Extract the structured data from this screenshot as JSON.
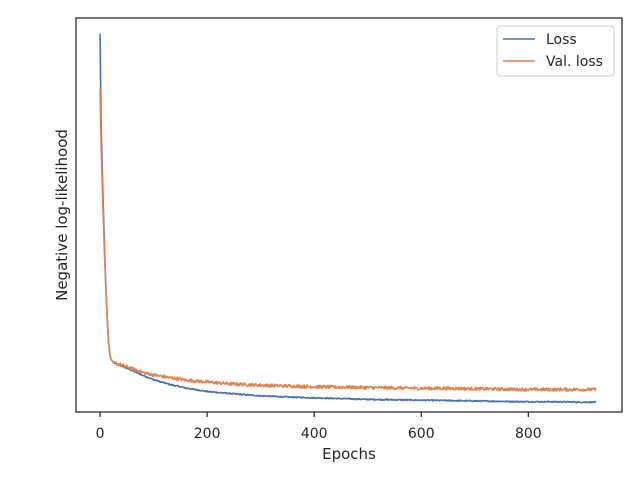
{
  "chart_data": {
    "type": "line",
    "title": "",
    "xlabel": "Epochs",
    "ylabel": "Negative log-likelihood",
    "xlim": [
      -45,
      975
    ],
    "ylim": [
      0,
      1
    ],
    "xticks": [
      0,
      200,
      400,
      600,
      800
    ],
    "x_tick_labels": [
      "0",
      "200",
      "400",
      "600",
      "800"
    ],
    "y_tick_labels_visible": false,
    "grid": false,
    "legend_position": "top-right",
    "series": [
      {
        "name": "Loss",
        "color": "#4c72b0",
        "x": [
          0,
          1,
          2,
          4,
          6,
          8,
          10,
          12,
          14,
          16,
          18,
          20,
          25,
          30,
          40,
          60,
          80,
          100,
          130,
          160,
          200,
          250,
          300,
          350,
          400,
          450,
          500,
          550,
          600,
          650,
          700,
          750,
          800,
          850,
          900,
          927
        ],
        "y": [
          0.96,
          0.83,
          0.73,
          0.62,
          0.52,
          0.43,
          0.35,
          0.28,
          0.22,
          0.175,
          0.15,
          0.135,
          0.125,
          0.122,
          0.117,
          0.105,
          0.093,
          0.082,
          0.07,
          0.061,
          0.052,
          0.046,
          0.041,
          0.038,
          0.036,
          0.034,
          0.032,
          0.031,
          0.03,
          0.029,
          0.028,
          0.027,
          0.026,
          0.026,
          0.025,
          0.025
        ]
      },
      {
        "name": "Val. loss",
        "color": "#dd8452",
        "x": [
          0,
          1,
          2,
          4,
          6,
          8,
          10,
          12,
          14,
          16,
          18,
          20,
          25,
          30,
          40,
          60,
          80,
          100,
          130,
          160,
          200,
          250,
          300,
          350,
          400,
          450,
          500,
          550,
          600,
          650,
          700,
          750,
          800,
          850,
          900,
          927
        ],
        "y": [
          0.82,
          0.74,
          0.67,
          0.58,
          0.49,
          0.41,
          0.34,
          0.27,
          0.22,
          0.175,
          0.15,
          0.135,
          0.125,
          0.123,
          0.119,
          0.11,
          0.1,
          0.094,
          0.087,
          0.081,
          0.076,
          0.071,
          0.068,
          0.066,
          0.064,
          0.063,
          0.062,
          0.061,
          0.06,
          0.06,
          0.059,
          0.058,
          0.057,
          0.057,
          0.057,
          0.057
        ]
      }
    ]
  }
}
